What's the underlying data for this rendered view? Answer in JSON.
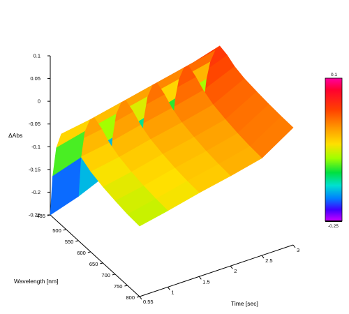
{
  "chart_data": {
    "type": "surface",
    "zlabel": "ΔAbs",
    "xlabel": "Wavelength [nm]",
    "ylabel": "Time [sec]",
    "x_ticks": [
      435,
      500,
      550,
      600,
      650,
      700,
      750,
      800
    ],
    "y_ticks": [
      "0.55",
      "1",
      "1.5",
      "2",
      "2.5",
      "3"
    ],
    "z_ticks": [
      "0.1",
      "0.05",
      "0",
      "-0.05",
      "-0.1",
      "-0.15",
      "-0.2",
      "-0.25"
    ],
    "xlim": [
      435,
      800
    ],
    "ylim": [
      0.55,
      3
    ],
    "zlim": [
      -0.25,
      0.1
    ],
    "colorbar": {
      "max": "0.1",
      "min": "-0.25"
    },
    "surface": {
      "wavelength": [
        435,
        445,
        460,
        480,
        500,
        530,
        560,
        600,
        650,
        700,
        750,
        800
      ],
      "time": [
        0.55,
        1,
        1.5,
        2,
        2.5,
        3
      ],
      "dAbs": [
        [
          -0.25,
          -0.16,
          -0.09,
          -0.05,
          -0.035,
          -0.045,
          -0.06,
          -0.073,
          -0.082,
          -0.088,
          -0.093,
          -0.095
        ],
        [
          -0.23,
          -0.14,
          -0.075,
          -0.04,
          -0.025,
          -0.035,
          -0.05,
          -0.062,
          -0.07,
          -0.076,
          -0.08,
          -0.082
        ],
        [
          -0.2,
          -0.12,
          -0.06,
          -0.025,
          -0.01,
          -0.02,
          -0.034,
          -0.046,
          -0.054,
          -0.06,
          -0.064,
          -0.066
        ],
        [
          -0.17,
          -0.1,
          -0.045,
          -0.01,
          0.005,
          -0.005,
          -0.02,
          -0.032,
          -0.04,
          -0.046,
          -0.05,
          -0.052
        ],
        [
          -0.14,
          -0.08,
          -0.03,
          0.005,
          0.02,
          0.01,
          -0.004,
          -0.016,
          -0.024,
          -0.03,
          -0.034,
          -0.036
        ],
        [
          -0.11,
          -0.06,
          -0.015,
          0.02,
          0.04,
          0.035,
          0.025,
          0.018,
          0.014,
          0.011,
          0.009,
          0.008
        ]
      ]
    }
  }
}
